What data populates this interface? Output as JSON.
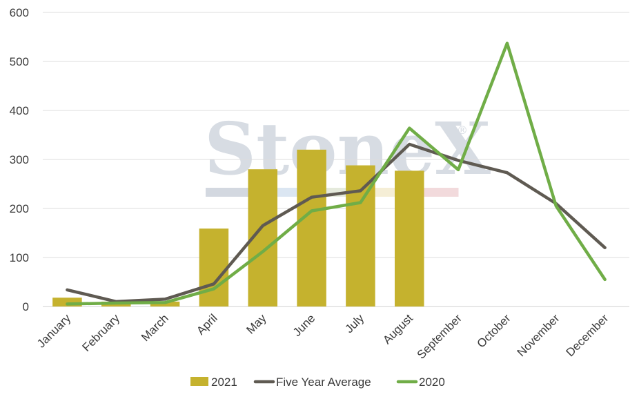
{
  "chart_data": {
    "type": "bar+line",
    "categories": [
      "January",
      "February",
      "March",
      "April",
      "May",
      "June",
      "July",
      "August",
      "September",
      "October",
      "November",
      "December"
    ],
    "ylim": [
      0,
      600
    ],
    "yticks": [
      0,
      100,
      200,
      300,
      400,
      500,
      600
    ],
    "grid": true,
    "legend_position": "bottom",
    "series": [
      {
        "name": "2021",
        "kind": "bar",
        "color": "#c5b22e",
        "values": [
          18,
          10,
          10,
          159,
          280,
          320,
          288,
          277,
          null,
          null,
          null,
          null
        ]
      },
      {
        "name": "Five Year Average",
        "kind": "line",
        "color": "#5f5a52",
        "values": [
          34,
          10,
          15,
          46,
          165,
          223,
          236,
          331,
          298,
          273,
          210,
          120
        ]
      },
      {
        "name": "2020",
        "kind": "line",
        "color": "#70ad47",
        "values": [
          5,
          7,
          8,
          36,
          112,
          195,
          212,
          364,
          279,
          537,
          205,
          55
        ]
      }
    ]
  },
  "watermark": {
    "text": "StoneX",
    "mark": "®",
    "band_colors": [
      "#d3d8e0",
      "#dbe6f2",
      "#e5eadc",
      "#f5eed6",
      "#f2dadc"
    ]
  }
}
